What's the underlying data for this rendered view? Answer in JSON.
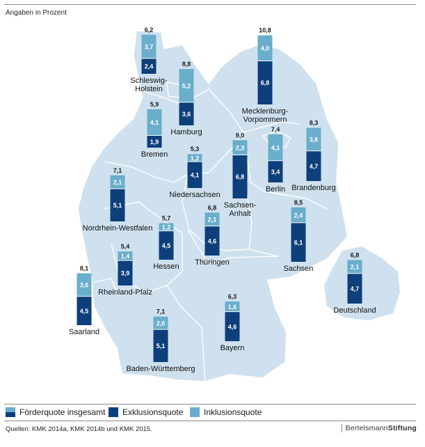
{
  "subtitle": "Angaben in Prozent",
  "colors": {
    "exklusion": "#0d3f7a",
    "inklusion": "#6aaecb",
    "map_fill": "#cfe1ee",
    "border": "#ffffff"
  },
  "legend": {
    "total": "Förderquote insgesamt",
    "exklusion": "Exklusionsquote",
    "inklusion": "Inklusionsquote"
  },
  "footer": {
    "sources": "Quellen: KMK 2014a, KMK 2014b und KMK 2015.",
    "brand_part1": "Bertelsmann",
    "brand_part2": "Stiftung"
  },
  "chart_data": {
    "type": "stacked-bar-on-map",
    "title": "",
    "unit": "Prozent",
    "series_names": [
      "Exklusionsquote",
      "Inklusionsquote"
    ],
    "regions": [
      {
        "name": "Schleswig-Holstein",
        "label_lines": [
          "Schleswig-",
          "Holstein"
        ],
        "exklusion": "2,4",
        "inklusion": "3,7",
        "total": "6,2"
      },
      {
        "name": "Hamburg",
        "label_lines": [
          "Hamburg"
        ],
        "exklusion": "3,6",
        "inklusion": "5,2",
        "total": "8,8"
      },
      {
        "name": "Mecklenburg-Vorpommern",
        "label_lines": [
          "Mecklenburg-",
          "Vorpommern"
        ],
        "exklusion": "6,8",
        "inklusion": "4,0",
        "total": "10,8"
      },
      {
        "name": "Bremen",
        "label_lines": [
          "Bremen"
        ],
        "exklusion": "1,9",
        "inklusion": "4,1",
        "total": "5,9"
      },
      {
        "name": "Niedersachsen",
        "label_lines": [
          "Niedersachsen"
        ],
        "exklusion": "4,1",
        "inklusion": "1,2",
        "total": "5,3"
      },
      {
        "name": "Sachsen-Anhalt",
        "label_lines": [
          "Sachsen-",
          "Anhalt"
        ],
        "exklusion": "6,8",
        "inklusion": "2,3",
        "total": "9,0"
      },
      {
        "name": "Berlin",
        "label_lines": [
          "Berlin"
        ],
        "exklusion": "3,4",
        "inklusion": "4,1",
        "total": "7,4"
      },
      {
        "name": "Brandenburg",
        "label_lines": [
          "Brandenburg"
        ],
        "exklusion": "4,7",
        "inklusion": "3,6",
        "total": "8,3"
      },
      {
        "name": "Nordrhein-Westfalen",
        "label_lines": [
          "Nordrhein-Westfalen"
        ],
        "exklusion": "5,1",
        "inklusion": "2,1",
        "total": "7,1"
      },
      {
        "name": "Hessen",
        "label_lines": [
          "Hessen"
        ],
        "exklusion": "4,5",
        "inklusion": "1,2",
        "total": "5,7"
      },
      {
        "name": "Thüringen",
        "label_lines": [
          "Thüringen"
        ],
        "exklusion": "4,6",
        "inklusion": "2,1",
        "total": "6,8"
      },
      {
        "name": "Sachsen",
        "label_lines": [
          "Sachsen"
        ],
        "exklusion": "6,1",
        "inklusion": "2,4",
        "total": "8,5"
      },
      {
        "name": "Rheinland-Pfalz",
        "label_lines": [
          "Rheinland-Pfalz"
        ],
        "exklusion": "3,9",
        "inklusion": "1,4",
        "total": "5,4"
      },
      {
        "name": "Saarland",
        "label_lines": [
          "Saarland"
        ],
        "exklusion": "4,5",
        "inklusion": "3,6",
        "total": "8,1"
      },
      {
        "name": "Baden-Württemberg",
        "label_lines": [
          "Baden-Württemberg"
        ],
        "exklusion": "5,1",
        "inklusion": "2,0",
        "total": "7,1"
      },
      {
        "name": "Bayern",
        "label_lines": [
          "Bayern"
        ],
        "exklusion": "4,6",
        "inklusion": "1,6",
        "total": "6,3"
      },
      {
        "name": "Deutschland",
        "label_lines": [
          "Deutschland"
        ],
        "exklusion": "4,7",
        "inklusion": "2,1",
        "total": "6,8"
      }
    ]
  }
}
